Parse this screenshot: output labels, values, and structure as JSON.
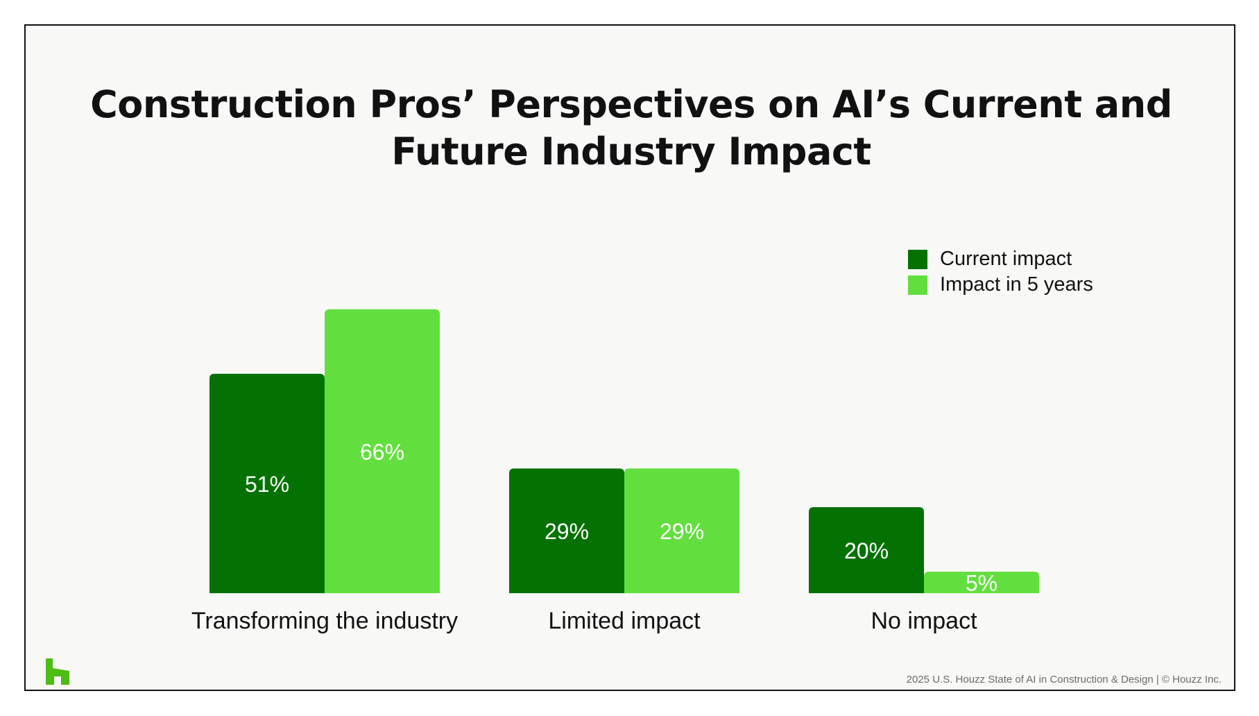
{
  "title_lines": [
    "Construction Pros’ Perspectives on AI’s Current and",
    "Future Industry Impact"
  ],
  "footer": "2025 U.S. Houzz State of AI in Construction & Design | © Houzz Inc.",
  "colors": {
    "current": "#037203",
    "future": "#62df3e",
    "logo": "#4dbc15"
  },
  "logo_icon": "houzz-logo-icon",
  "chart_data": {
    "type": "bar",
    "categories": [
      "Transforming the industry",
      "Limited impact",
      "No impact"
    ],
    "series": [
      {
        "name": "Current impact",
        "values": [
          51,
          29,
          20
        ],
        "labels": [
          "51%",
          "29%",
          "20%"
        ]
      },
      {
        "name": "Impact in 5 years",
        "values": [
          66,
          29,
          5
        ],
        "labels": [
          "66%",
          "29%",
          "5%"
        ]
      }
    ],
    "ylim": [
      0,
      66
    ],
    "grid": false,
    "legend": "top-right"
  }
}
